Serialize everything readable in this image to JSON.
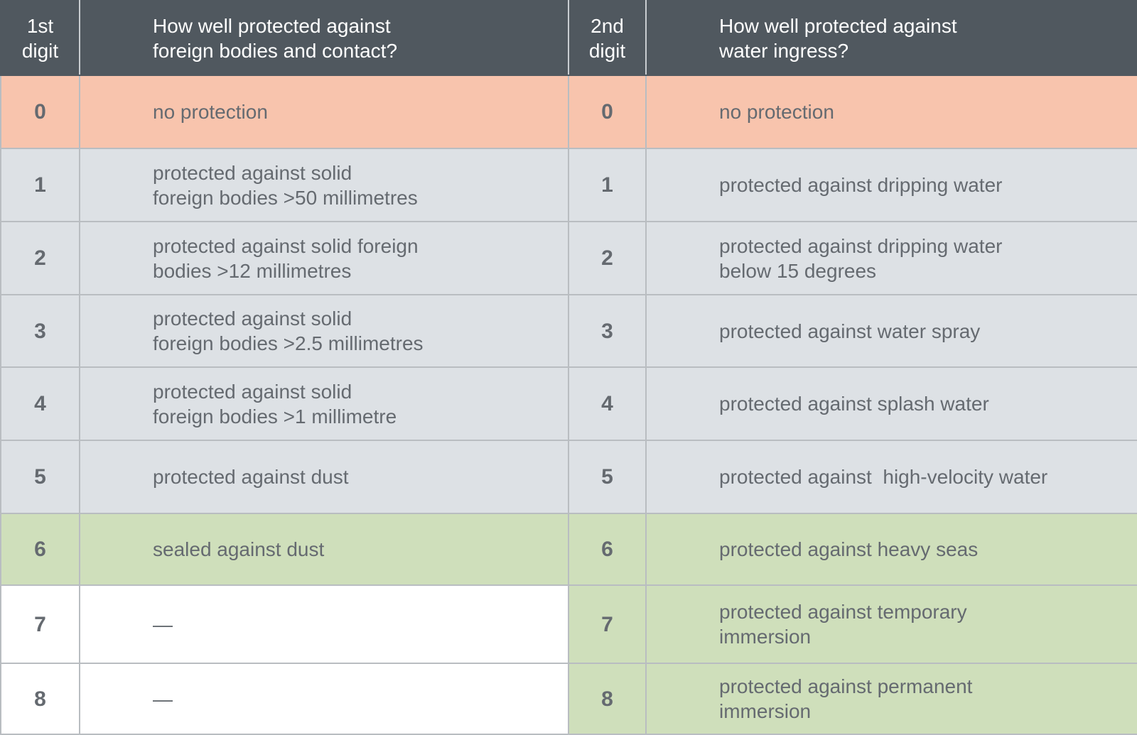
{
  "table": {
    "header": [
      "1st\ndigit",
      "How well protected against\nforeign bodies and contact?",
      "2nd\ndigit",
      "How well protected against\nwater ingress?"
    ],
    "rows": [
      [
        "0",
        "no protection",
        "0",
        "no protection"
      ],
      [
        "1",
        "protected against solid\nforeign bodies >50 millimetres",
        "1",
        "protected against dripping water"
      ],
      [
        "2",
        "protected against solid foreign\nbodies >12 millimetres",
        "2",
        "protected against dripping water\nbelow 15 degrees"
      ],
      [
        "3",
        "protected against solid\nforeign bodies >2.5 millimetres",
        "3",
        "protected against water spray"
      ],
      [
        "4",
        "protected against solid\nforeign bodies >1 millimetre",
        "4",
        "protected against splash water"
      ],
      [
        "5",
        "protected against dust",
        "5",
        "protected against  high-velocity water"
      ],
      [
        "6",
        "sealed against dust",
        "6",
        "protected against heavy seas"
      ],
      [
        "7",
        "—",
        "7",
        "protected against temporary\nimmersion"
      ],
      [
        "8",
        "—",
        "8",
        "protected against permanent\nimmersion"
      ]
    ]
  }
}
